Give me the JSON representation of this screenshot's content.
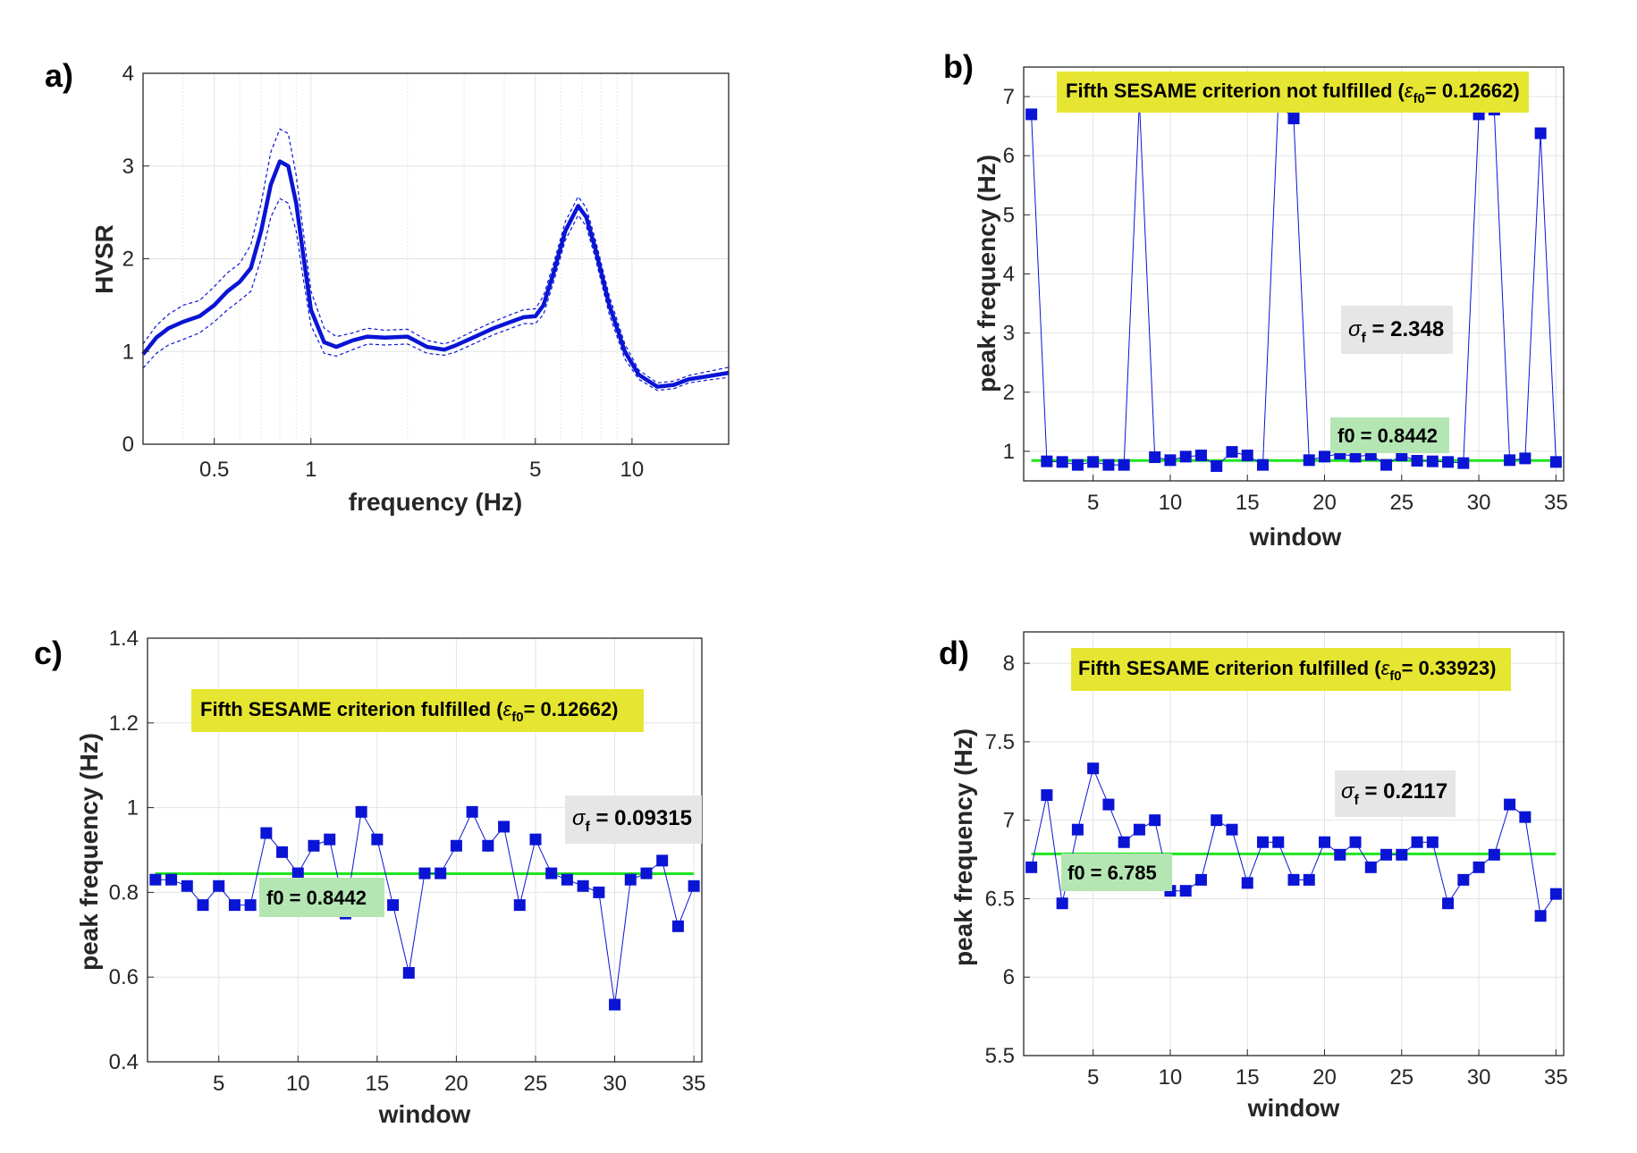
{
  "chart_data": [
    {
      "panel_label": "a)",
      "type": "line",
      "xscale": "log",
      "xlabel": "frequency (Hz)",
      "ylabel": "HVSR",
      "xlim": [
        0.3,
        20
      ],
      "ylim": [
        0,
        4
      ],
      "xticks": [
        0.5,
        1,
        5,
        10
      ],
      "xtick_labels": [
        "0.5",
        "1",
        "5",
        "10"
      ],
      "yticks": [
        0,
        1,
        2,
        3,
        4
      ],
      "ytick_labels": [
        "0",
        "1",
        "2",
        "3",
        "4"
      ],
      "grid": true,
      "series": [
        {
          "role": "mean",
          "color": "#0a14d4",
          "x": [
            0.3,
            0.33,
            0.36,
            0.4,
            0.45,
            0.5,
            0.55,
            0.6,
            0.65,
            0.7,
            0.75,
            0.8,
            0.85,
            0.9,
            0.95,
            1.0,
            1.1,
            1.2,
            1.35,
            1.5,
            1.7,
            2.0,
            2.3,
            2.6,
            2.8,
            3.2,
            3.7,
            4.2,
            4.6,
            5.0,
            5.3,
            5.7,
            6.2,
            6.8,
            7.2,
            7.7,
            8.5,
            9.5,
            10.5,
            12,
            13.5,
            15,
            17,
            20
          ],
          "y": [
            0.97,
            1.15,
            1.25,
            1.32,
            1.38,
            1.5,
            1.65,
            1.75,
            1.9,
            2.3,
            2.8,
            3.05,
            3.0,
            2.6,
            2.0,
            1.45,
            1.1,
            1.05,
            1.12,
            1.16,
            1.15,
            1.16,
            1.05,
            1.02,
            1.06,
            1.15,
            1.25,
            1.32,
            1.37,
            1.38,
            1.5,
            1.85,
            2.3,
            2.57,
            2.45,
            2.1,
            1.5,
            1.0,
            0.75,
            0.62,
            0.64,
            0.7,
            0.73,
            0.77
          ]
        },
        {
          "role": "upper",
          "color": "#0a14d4",
          "x": [
            0.3,
            0.33,
            0.36,
            0.4,
            0.45,
            0.5,
            0.55,
            0.6,
            0.65,
            0.7,
            0.75,
            0.8,
            0.85,
            0.9,
            0.95,
            1.0,
            1.1,
            1.2,
            1.35,
            1.5,
            1.7,
            2.0,
            2.3,
            2.6,
            2.8,
            3.2,
            3.7,
            4.2,
            4.6,
            5.0,
            5.3,
            5.7,
            6.2,
            6.8,
            7.2,
            7.7,
            8.5,
            9.5,
            10.5,
            12,
            13.5,
            15,
            17,
            20
          ],
          "y": [
            1.08,
            1.28,
            1.4,
            1.5,
            1.55,
            1.7,
            1.85,
            1.95,
            2.15,
            2.6,
            3.15,
            3.4,
            3.35,
            2.9,
            2.25,
            1.65,
            1.25,
            1.16,
            1.2,
            1.25,
            1.23,
            1.24,
            1.12,
            1.08,
            1.12,
            1.22,
            1.32,
            1.4,
            1.45,
            1.46,
            1.6,
            1.95,
            2.4,
            2.67,
            2.55,
            2.2,
            1.6,
            1.08,
            0.8,
            0.66,
            0.68,
            0.74,
            0.78,
            0.83
          ]
        },
        {
          "role": "lower",
          "color": "#0a14d4",
          "x": [
            0.3,
            0.33,
            0.36,
            0.4,
            0.45,
            0.5,
            0.55,
            0.6,
            0.65,
            0.7,
            0.75,
            0.8,
            0.85,
            0.9,
            0.95,
            1.0,
            1.1,
            1.2,
            1.35,
            1.5,
            1.7,
            2.0,
            2.3,
            2.6,
            2.8,
            3.2,
            3.7,
            4.2,
            4.6,
            5.0,
            5.3,
            5.7,
            6.2,
            6.8,
            7.2,
            7.7,
            8.5,
            9.5,
            10.5,
            12,
            13.5,
            15,
            17,
            20
          ],
          "y": [
            0.82,
            0.98,
            1.07,
            1.13,
            1.2,
            1.32,
            1.45,
            1.55,
            1.65,
            2.0,
            2.45,
            2.65,
            2.6,
            2.3,
            1.75,
            1.28,
            0.98,
            0.95,
            1.02,
            1.08,
            1.07,
            1.08,
            0.98,
            0.96,
            0.99,
            1.08,
            1.18,
            1.25,
            1.3,
            1.3,
            1.4,
            1.75,
            2.2,
            2.47,
            2.35,
            2.0,
            1.4,
            0.92,
            0.7,
            0.58,
            0.6,
            0.66,
            0.69,
            0.72
          ]
        }
      ]
    },
    {
      "panel_label": "b)",
      "type": "line",
      "xlabel": "window",
      "ylabel": "peak frequency (Hz)",
      "xlim": [
        0.5,
        35.5
      ],
      "ylim": [
        0.5,
        7.5
      ],
      "xticks": [
        5,
        10,
        15,
        20,
        25,
        30,
        35
      ],
      "yticks": [
        1,
        2,
        3,
        4,
        5,
        6,
        7
      ],
      "grid": true,
      "series": [
        {
          "role": "windows",
          "color": "#0a14d4",
          "marker": "square",
          "x": [
            1,
            2,
            3,
            4,
            5,
            6,
            7,
            8,
            9,
            10,
            11,
            12,
            13,
            14,
            15,
            16,
            17,
            18,
            19,
            20,
            21,
            22,
            23,
            24,
            25,
            26,
            27,
            28,
            29,
            30,
            31,
            32,
            33,
            34,
            35
          ],
          "y": [
            6.7,
            0.83,
            0.82,
            0.77,
            0.82,
            0.77,
            0.77,
            6.93,
            0.9,
            0.85,
            0.91,
            0.93,
            0.75,
            0.99,
            0.93,
            0.77,
            6.87,
            6.63,
            0.85,
            0.91,
            0.96,
            0.91,
            0.94,
            0.77,
            0.93,
            0.84,
            0.83,
            0.82,
            0.8,
            6.7,
            6.78,
            0.85,
            0.88,
            6.38,
            0.82
          ]
        }
      ],
      "f0": 0.8442,
      "f0_label": "f0 = 0.8442",
      "criterion_prefix": "Fifth SESAME criterion not fulfilled (",
      "eps_symbol": "ε",
      "eps_subscript": "f0",
      "criterion_value": "= 0.12662)",
      "sigma_symbol": "σ",
      "sigma_subscript": "f",
      "sigma_value": " = 2.348"
    },
    {
      "panel_label": "c)",
      "type": "line",
      "xlabel": "window",
      "ylabel": "peak frequency (Hz)",
      "xlim": [
        0.5,
        35.5
      ],
      "ylim": [
        0.4,
        1.4
      ],
      "xticks": [
        5,
        10,
        15,
        20,
        25,
        30,
        35
      ],
      "yticks": [
        0.4,
        0.6,
        0.8,
        1,
        1.2,
        1.4
      ],
      "ytick_labels": [
        "0.4",
        "0.6",
        "0.8",
        "1",
        "1.2",
        "1.4"
      ],
      "grid": true,
      "series": [
        {
          "role": "windows",
          "color": "#0a14d4",
          "marker": "square",
          "x": [
            1,
            2,
            3,
            4,
            5,
            6,
            7,
            8,
            9,
            10,
            11,
            12,
            13,
            14,
            15,
            16,
            17,
            18,
            19,
            20,
            21,
            22,
            23,
            24,
            25,
            26,
            27,
            28,
            29,
            30,
            31,
            32,
            33,
            34,
            35
          ],
          "y": [
            0.83,
            0.83,
            0.815,
            0.77,
            0.815,
            0.77,
            0.77,
            0.94,
            0.895,
            0.845,
            0.91,
            0.925,
            0.75,
            0.99,
            0.925,
            0.77,
            0.61,
            0.845,
            0.845,
            0.91,
            0.99,
            0.91,
            0.955,
            0.77,
            0.925,
            0.845,
            0.83,
            0.815,
            0.8,
            0.535,
            0.83,
            0.845,
            0.875,
            0.72,
            0.815
          ]
        }
      ],
      "f0": 0.8442,
      "f0_label": "f0 = 0.8442",
      "criterion_prefix": "Fifth SESAME criterion fulfilled (",
      "eps_symbol": "ε",
      "eps_subscript": "f0",
      "criterion_value": "= 0.12662)",
      "sigma_symbol": "σ",
      "sigma_subscript": "f",
      "sigma_value": " = 0.09315"
    },
    {
      "panel_label": "d)",
      "type": "line",
      "xlabel": "window",
      "ylabel": "peak frequency (Hz)",
      "xlim": [
        0.5,
        35.5
      ],
      "ylim": [
        5.5,
        8.2
      ],
      "xticks": [
        5,
        10,
        15,
        20,
        25,
        30,
        35
      ],
      "yticks": [
        5.5,
        6,
        6.5,
        7,
        7.5,
        8
      ],
      "ytick_labels": [
        "5.5",
        "6",
        "6.5",
        "7",
        "7.5",
        "8"
      ],
      "grid": true,
      "series": [
        {
          "role": "windows",
          "color": "#0a14d4",
          "marker": "square",
          "x": [
            1,
            2,
            3,
            4,
            5,
            6,
            7,
            8,
            9,
            10,
            11,
            12,
            13,
            14,
            15,
            16,
            17,
            18,
            19,
            20,
            21,
            22,
            23,
            24,
            25,
            26,
            27,
            28,
            29,
            30,
            31,
            32,
            33,
            34,
            35
          ],
          "y": [
            6.7,
            7.16,
            6.47,
            6.94,
            7.33,
            7.1,
            6.86,
            6.94,
            7.0,
            6.55,
            6.55,
            6.62,
            7.0,
            6.94,
            6.6,
            6.86,
            6.86,
            6.62,
            6.62,
            6.86,
            6.78,
            6.86,
            6.7,
            6.78,
            6.78,
            6.86,
            6.86,
            6.47,
            6.62,
            6.7,
            6.78,
            7.1,
            7.02,
            6.39,
            6.53
          ]
        }
      ],
      "f0": 6.785,
      "f0_label": "f0 = 6.785",
      "criterion_prefix": "Fifth SESAME criterion fulfilled (",
      "eps_symbol": "ε",
      "eps_subscript": "f0",
      "criterion_value": "= 0.33923)",
      "sigma_symbol": "σ",
      "sigma_subscript": "f",
      "sigma_value": " = 0.2117"
    }
  ],
  "colors": {
    "data_line": "#0a14d4",
    "f0_line": "#1ee61e",
    "criterion_box": "#e6e632",
    "f0_box": "#b4e6b4",
    "sigma_box": "#e6e6e6",
    "grid": "#e3e3e3",
    "minor_grid": "#e6e6e6"
  }
}
